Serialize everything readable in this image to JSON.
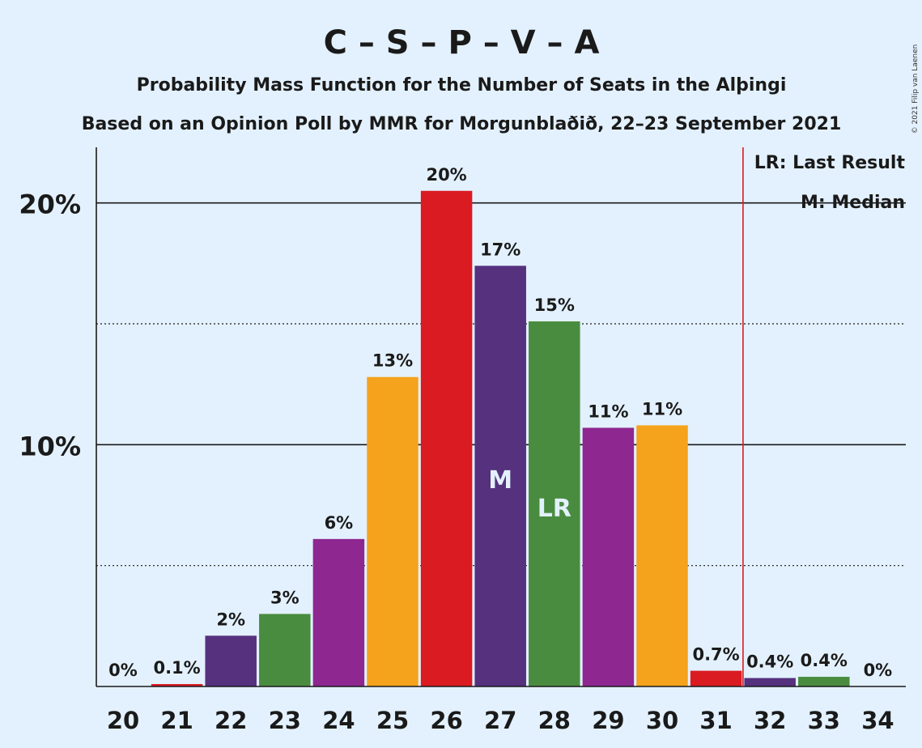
{
  "colors": {
    "background": "#e3f1fe",
    "red": "#da1b21",
    "dark_purple": "#55317e",
    "green": "#4a8c3f",
    "purple": "#8e278f",
    "orange": "#f5a31d",
    "last_result_line": "#da1b21"
  },
  "chart_data": {
    "type": "bar",
    "title": "C – S – P – V – A",
    "subtitle1": "Probability Mass Function for the Number of Seats in the Alþingi",
    "subtitle2": "Based on an Opinion Poll by MMR for Morgunblaðið, 22–23 September 2021",
    "copyright": "© 2021 Filip van Laenen",
    "categories": [
      "20",
      "21",
      "22",
      "23",
      "24",
      "25",
      "26",
      "27",
      "28",
      "29",
      "30",
      "31",
      "32",
      "33",
      "34"
    ],
    "values": [
      0,
      0.1,
      2.1,
      3.0,
      6.1,
      12.8,
      20.5,
      17.4,
      15.1,
      10.7,
      10.8,
      0.65,
      0.35,
      0.4,
      0
    ],
    "labels": [
      "0%",
      "0.1%",
      "2%",
      "3%",
      "6%",
      "13%",
      "20%",
      "17%",
      "15%",
      "11%",
      "11%",
      "0.7%",
      "0.4%",
      "0.4%",
      "0%"
    ],
    "bar_colors": [
      "dark_purple",
      "red",
      "dark_purple",
      "green",
      "purple",
      "orange",
      "red",
      "dark_purple",
      "green",
      "purple",
      "orange",
      "red",
      "dark_purple",
      "green",
      "purple"
    ],
    "yticks": [
      {
        "value": 10,
        "label": "10%"
      },
      {
        "value": 20,
        "label": "20%"
      }
    ],
    "dotted_gridlines": [
      5,
      15
    ],
    "ylim": [
      0,
      22.3
    ],
    "median_seat": "27",
    "median_marker": "M",
    "last_result_seat": "28",
    "last_result_marker": "LR",
    "majority_line_after": "31",
    "legend": [
      "LR: Last Result",
      "M: Median"
    ],
    "legend_position": "top-right",
    "grid": true
  }
}
